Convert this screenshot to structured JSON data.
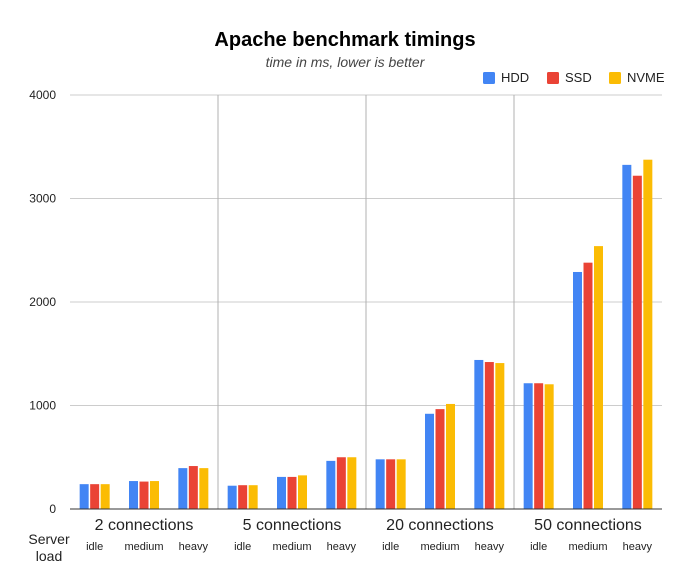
{
  "chart_data": {
    "type": "bar",
    "title": "Apache benchmark timings",
    "subtitle": "time in ms, lower is better",
    "xlabel": "Server load",
    "ylabel": "",
    "ylim": [
      0,
      4000
    ],
    "yticks": [
      0,
      1000,
      2000,
      3000,
      4000
    ],
    "grid": true,
    "legend_position": "top-right",
    "groups": [
      "2 connections",
      "5 connections",
      "20 connections",
      "50 connections"
    ],
    "subcategories": [
      "idle",
      "medium",
      "heavy"
    ],
    "series": [
      {
        "name": "HDD",
        "color": "#4285F4",
        "values": [
          [
            240,
            270,
            395
          ],
          [
            225,
            310,
            465
          ],
          [
            480,
            920,
            1440
          ],
          [
            1215,
            2290,
            3325
          ]
        ]
      },
      {
        "name": "SSD",
        "color": "#EA4335",
        "values": [
          [
            240,
            265,
            415
          ],
          [
            230,
            310,
            500
          ],
          [
            480,
            965,
            1420
          ],
          [
            1215,
            2380,
            3220
          ]
        ]
      },
      {
        "name": "NVME",
        "color": "#FBBC04",
        "values": [
          [
            240,
            270,
            395
          ],
          [
            230,
            325,
            500
          ],
          [
            480,
            1015,
            1410
          ],
          [
            1205,
            2540,
            3375
          ]
        ]
      }
    ]
  }
}
